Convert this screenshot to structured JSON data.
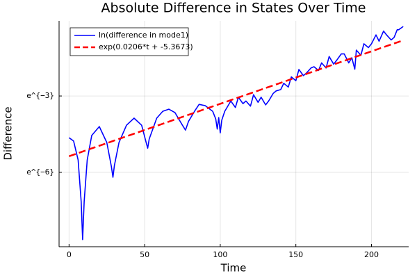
{
  "chart_data": {
    "type": "line",
    "title": "Absolute Difference in States Over Time",
    "xlabel": "Time",
    "ylabel": "Difference",
    "xlim": [
      -6.6,
      224.6
    ],
    "ylim": [
      -8.92,
      -0.05
    ],
    "xticks": [
      0,
      50,
      100,
      150,
      200
    ],
    "yticks": [
      {
        "value": -6,
        "label": "e^{−6}"
      },
      {
        "value": -3,
        "label": "e^{−3}"
      }
    ],
    "grid": true,
    "legend": "top-left",
    "series": [
      {
        "name": "ln(difference in mode1)",
        "color": "#0000ff",
        "dash": false,
        "x": [
          0,
          3,
          6,
          8,
          9,
          10,
          12,
          15,
          20,
          25,
          28,
          29,
          30,
          33,
          38,
          43,
          48,
          51,
          52,
          53,
          58,
          62,
          66,
          70,
          75,
          77,
          79,
          83,
          86,
          90,
          95,
          97,
          98,
          99,
          100,
          101,
          103,
          107,
          110,
          112,
          115,
          117,
          120,
          122,
          125,
          127,
          130,
          132,
          135,
          137,
          140,
          142,
          145,
          147,
          150,
          152,
          155,
          157,
          160,
          162,
          165,
          167,
          170,
          172,
          175,
          177,
          180,
          182,
          185,
          187,
          189,
          190,
          193,
          195,
          198,
          200,
          203,
          205,
          208,
          210,
          213,
          215,
          217,
          218,
          221
        ],
        "values": [
          -4.64,
          -4.77,
          -5.51,
          -7.15,
          -8.64,
          -7.15,
          -5.51,
          -4.55,
          -4.2,
          -4.83,
          -5.78,
          -6.19,
          -5.73,
          -4.83,
          -4.15,
          -3.87,
          -4.15,
          -4.83,
          -5.05,
          -4.69,
          -3.87,
          -3.6,
          -3.52,
          -3.65,
          -4.15,
          -4.34,
          -4.0,
          -3.6,
          -3.33,
          -3.38,
          -3.6,
          -3.9,
          -4.3,
          -3.85,
          -4.45,
          -3.95,
          -3.6,
          -3.2,
          -3.45,
          -3.05,
          -3.3,
          -3.2,
          -3.4,
          -2.95,
          -3.25,
          -3.05,
          -3.35,
          -3.2,
          -2.9,
          -2.8,
          -2.75,
          -2.5,
          -2.65,
          -2.25,
          -2.4,
          -1.96,
          -2.2,
          -2.1,
          -1.9,
          -1.85,
          -2.0,
          -1.7,
          -1.9,
          -1.45,
          -1.75,
          -1.6,
          -1.35,
          -1.35,
          -1.7,
          -1.5,
          -1.95,
          -1.2,
          -1.4,
          -0.95,
          -1.1,
          -0.95,
          -0.6,
          -0.85,
          -0.45,
          -0.6,
          -0.8,
          -0.7,
          -0.4,
          -0.4,
          -0.27
        ]
      },
      {
        "name": "exp(0.0206*t + -5.3673)",
        "color": "#ff0000",
        "dash": true,
        "x": [
          0,
          221
        ],
        "values": [
          -5.3673,
          -0.8147
        ]
      }
    ]
  }
}
